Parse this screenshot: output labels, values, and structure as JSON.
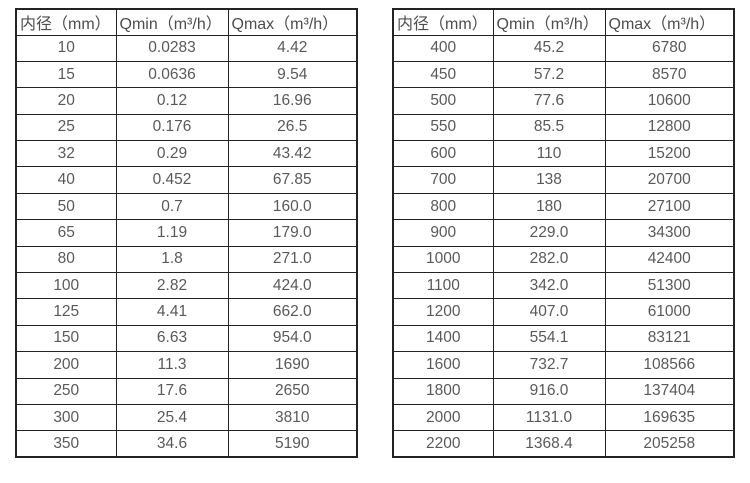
{
  "colors": {
    "background": "#ffffff",
    "border": "#232323",
    "header_text": "#4d4d4d",
    "cell_text": "#595959"
  },
  "chart_data": [
    {
      "type": "table",
      "name": "flow-range-table-small-diameters",
      "columns": [
        "内径（mm）",
        "Qmin（m³/h）",
        "Qmax（m³/h）"
      ],
      "rows": [
        [
          "10",
          "0.0283",
          "4.42"
        ],
        [
          "15",
          "0.0636",
          "9.54"
        ],
        [
          "20",
          "0.12",
          "16.96"
        ],
        [
          "25",
          "0.176",
          "26.5"
        ],
        [
          "32",
          "0.29",
          "43.42"
        ],
        [
          "40",
          "0.452",
          "67.85"
        ],
        [
          "50",
          "0.7",
          "160.0"
        ],
        [
          "65",
          "1.19",
          "179.0"
        ],
        [
          "80",
          "1.8",
          "271.0"
        ],
        [
          "100",
          "2.82",
          "424.0"
        ],
        [
          "125",
          "4.41",
          "662.0"
        ],
        [
          "150",
          "6.63",
          "954.0"
        ],
        [
          "200",
          "11.3",
          "1690"
        ],
        [
          "250",
          "17.6",
          "2650"
        ],
        [
          "300",
          "25.4",
          "3810"
        ],
        [
          "350",
          "34.6",
          "5190"
        ]
      ]
    },
    {
      "type": "table",
      "name": "flow-range-table-large-diameters",
      "columns": [
        "内径（mm）",
        "Qmin（m³/h）",
        "Qmax（m³/h）"
      ],
      "rows": [
        [
          "400",
          "45.2",
          "6780"
        ],
        [
          "450",
          "57.2",
          "8570"
        ],
        [
          "500",
          "77.6",
          "10600"
        ],
        [
          "550",
          "85.5",
          "12800"
        ],
        [
          "600",
          "110",
          "15200"
        ],
        [
          "700",
          "138",
          "20700"
        ],
        [
          "800",
          "180",
          "27100"
        ],
        [
          "900",
          "229.0",
          "34300"
        ],
        [
          "1000",
          "282.0",
          "42400"
        ],
        [
          "1100",
          "342.0",
          "51300"
        ],
        [
          "1200",
          "407.0",
          "61000"
        ],
        [
          "1400",
          "554.1",
          "83121"
        ],
        [
          "1600",
          "732.7",
          "108566"
        ],
        [
          "1800",
          "916.0",
          "137404"
        ],
        [
          "2000",
          "1131.0",
          "169635"
        ],
        [
          "2200",
          "1368.4",
          "205258"
        ]
      ]
    }
  ]
}
